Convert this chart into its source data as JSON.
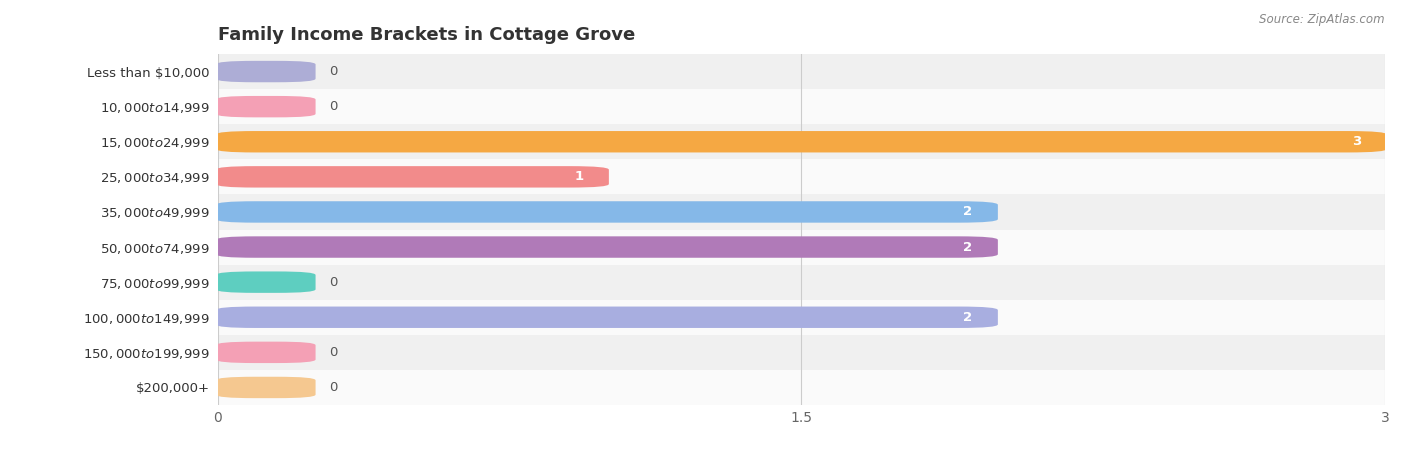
{
  "title": "Family Income Brackets in Cottage Grove",
  "source": "Source: ZipAtlas.com",
  "categories": [
    "Less than $10,000",
    "$10,000 to $14,999",
    "$15,000 to $24,999",
    "$25,000 to $34,999",
    "$35,000 to $49,999",
    "$50,000 to $74,999",
    "$75,000 to $99,999",
    "$100,000 to $149,999",
    "$150,000 to $199,999",
    "$200,000+"
  ],
  "values": [
    0,
    0,
    3,
    1,
    2,
    2,
    0,
    2,
    0,
    0
  ],
  "bar_colors": [
    "#adadd6",
    "#f4a0b5",
    "#f5a843",
    "#f28b8b",
    "#85b8e8",
    "#b07ab8",
    "#5ecec0",
    "#a8aee0",
    "#f4a0b5",
    "#f5c890"
  ],
  "bg_row_colors": [
    "#f0f0f0",
    "#fafafa"
  ],
  "xlim": [
    0,
    3
  ],
  "xticks": [
    0,
    1.5,
    3
  ],
  "title_fontsize": 13,
  "label_fontsize": 9.5,
  "tick_fontsize": 10,
  "background_color": "#ffffff",
  "bar_height": 0.6,
  "value_label_zero_color": "#555555",
  "value_label_nonzero_color": "#ffffff"
}
